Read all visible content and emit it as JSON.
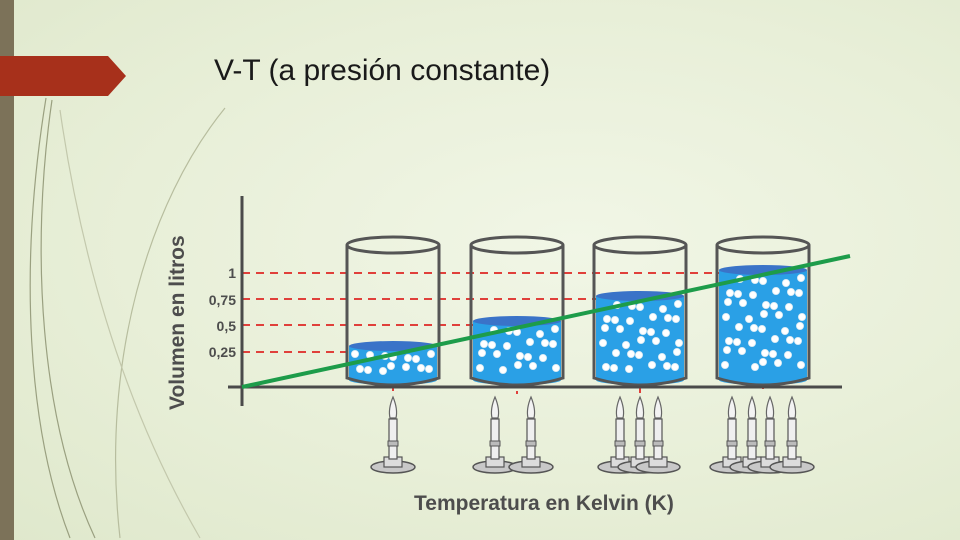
{
  "slide": {
    "title": "V-T (a presión constante)",
    "accent_color": "#a7301b",
    "sidebar_color": "#7c7259"
  },
  "diagram": {
    "y_axis_label": "Volumen en litros",
    "x_axis_label": "Temperatura en Kelvin (K)",
    "y_tick_labels": [
      "1",
      "0,75",
      "0,5",
      "0,25"
    ],
    "y_tick_values": [
      1,
      0.75,
      0.5,
      0.25
    ],
    "containers": [
      {
        "volume_fraction": 0.25,
        "burners": 1
      },
      {
        "volume_fraction": 0.5,
        "burners": 2
      },
      {
        "volume_fraction": 0.75,
        "burners": 3
      },
      {
        "volume_fraction": 1.0,
        "burners": 4
      }
    ],
    "colors": {
      "water": "#2aa0e6",
      "water_top": "#3a73c8",
      "trend_line": "#1d9c4a",
      "guide_line": "#e0403b",
      "axis": "#4a4a4a"
    }
  }
}
